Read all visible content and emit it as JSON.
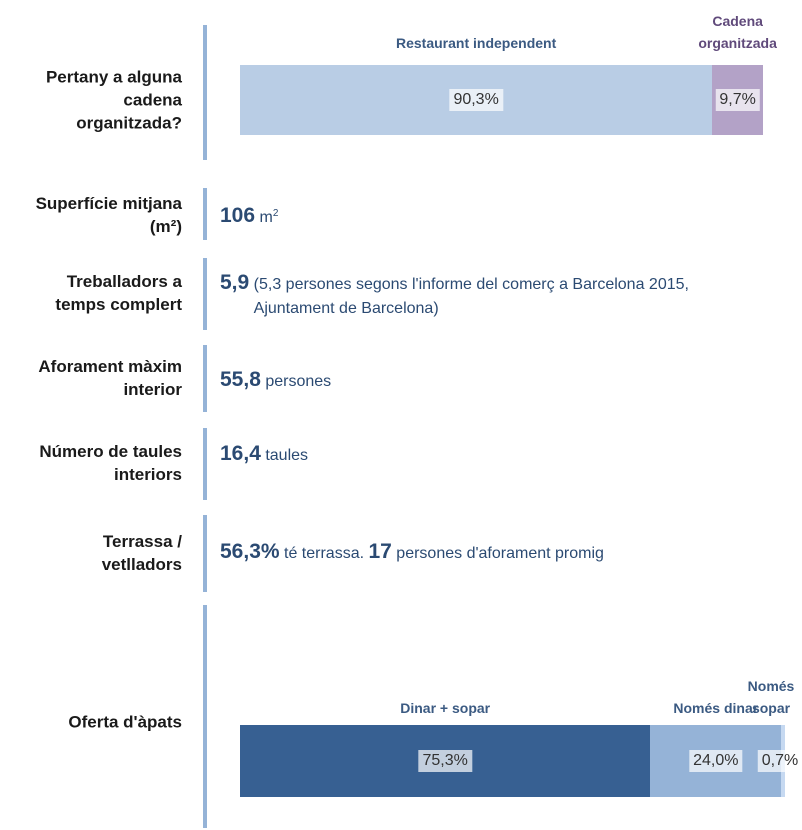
{
  "rows": [
    {
      "label": "Pertany a alguna cadena organitzada?",
      "bar": [
        {
          "name": "Restaurant independent",
          "value": 90.3,
          "value_label": "90,3%",
          "color": "#b9cde5"
        },
        {
          "name": "Cadena organitzada",
          "value": 9.7,
          "value_label": "9,7%",
          "color": "#b3a2c7"
        }
      ]
    },
    {
      "label": "Superfície mitjana (m²)",
      "value": "106",
      "unit": "m",
      "unit_sup": "2"
    },
    {
      "label": "Treballadors a temps complert",
      "value": "5,9",
      "note": "(5,3 persones segons l'informe del comerç a Barcelona 2015, Ajuntament de Barcelona)"
    },
    {
      "label": "Aforament màxim interior",
      "value": "55,8",
      "unit": "persones"
    },
    {
      "label": "Número de taules interiors",
      "value": "16,4",
      "unit": "taules"
    },
    {
      "label": "Terrassa / vetlladors",
      "value": "56,3%",
      "unit": "té terrassa.",
      "value2": "17",
      "unit2": "persones d'aforament promig"
    },
    {
      "label": "Oferta d'àpats",
      "bar": [
        {
          "name": "Dinar + sopar",
          "value": 75.3,
          "value_label": "75,3%",
          "color": "#376092"
        },
        {
          "name": "Només dinar",
          "value": 24.0,
          "value_label": "24,0%",
          "color": "#95b3d7"
        },
        {
          "name": "Només sopar",
          "value": 0.7,
          "value_label": "0,7%",
          "color": "#c6d9f1"
        }
      ]
    }
  ]
}
